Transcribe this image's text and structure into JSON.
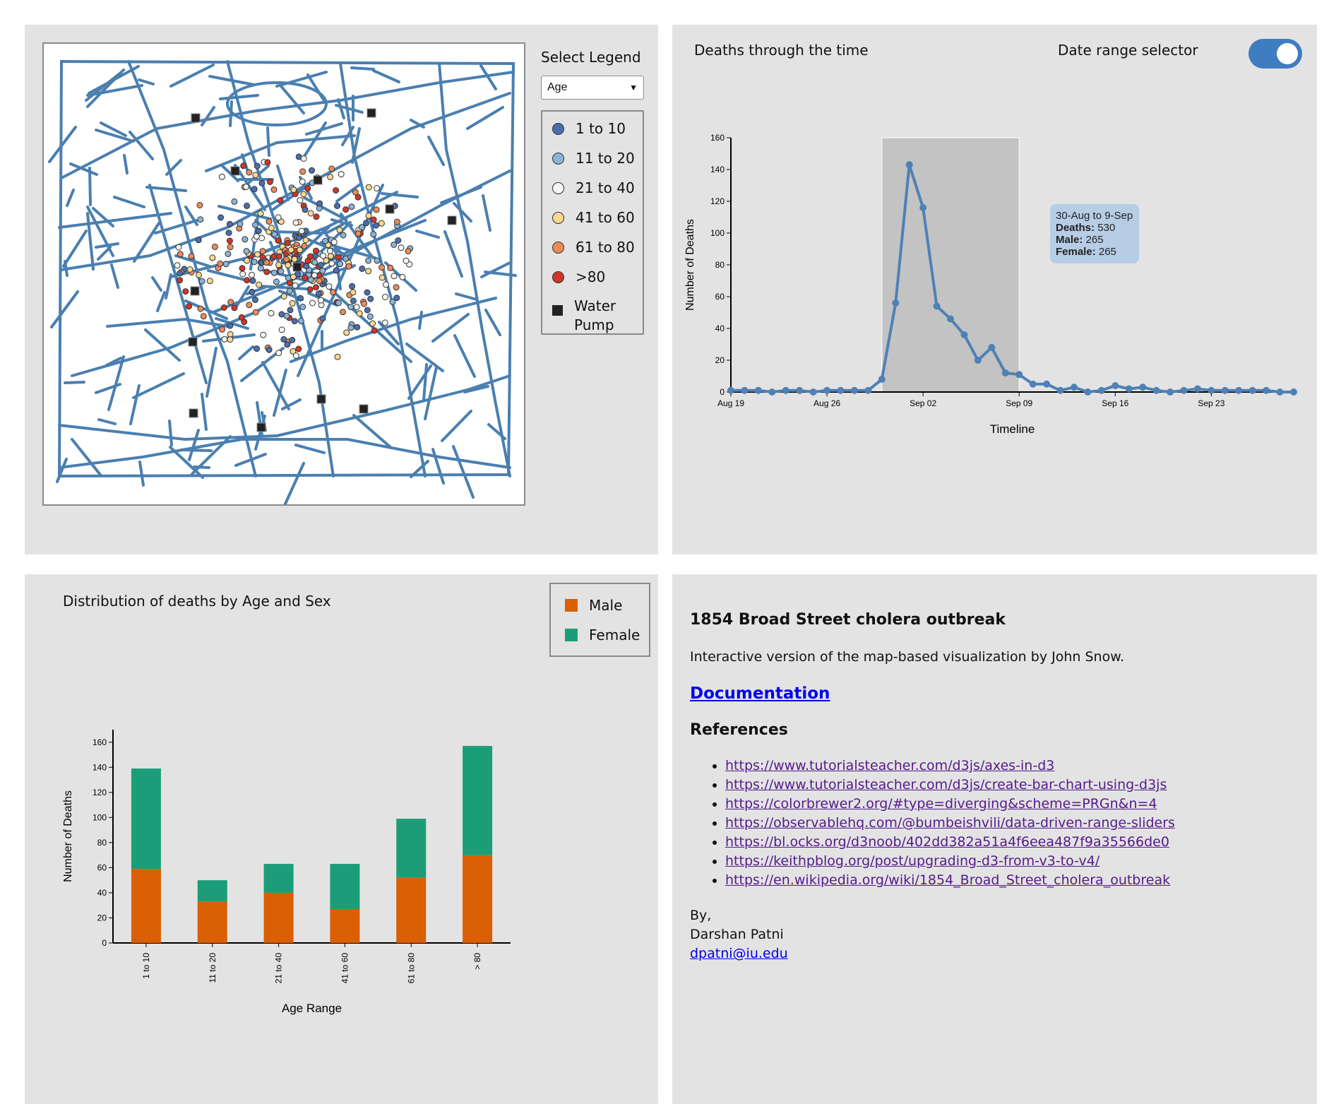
{
  "map_panel": {
    "legend_title": "Select Legend",
    "select_value": "Age",
    "legend_items": [
      {
        "label": "1 to 10",
        "color": "#4a6fae"
      },
      {
        "label": "11 to 20",
        "color": "#8ab3d8"
      },
      {
        "label": "21 to 40",
        "color": "#f3f6f2"
      },
      {
        "label": "41 to 60",
        "color": "#f7d98f"
      },
      {
        "label": "61 to 80",
        "color": "#ee8a5a"
      },
      {
        "label": ">80",
        "color": "#d0352b"
      }
    ],
    "pump_label_1": "Water",
    "pump_label_2": "Pump",
    "street_color": "#4a7fb0"
  },
  "line_panel": {
    "title": "Deaths through the time",
    "toggle_label": "Date range selector",
    "toggle_on": true,
    "tooltip": {
      "range": "30-Aug to 9-Sep",
      "deaths_label": "Deaths:",
      "deaths": "530",
      "male_label": "Male:",
      "male": "265",
      "female_label": "Female:",
      "female": "265"
    }
  },
  "bar_panel": {
    "title": "Distribution of deaths by Age and Sex",
    "legend": [
      {
        "label": "Male",
        "color": "#d95f02"
      },
      {
        "label": "Female",
        "color": "#1b9e77"
      }
    ]
  },
  "info_panel": {
    "heading": "1854 Broad Street cholera outbreak",
    "description": "Interactive version of the map-based visualization by John Snow.",
    "doc_link": "Documentation",
    "references_heading": "References",
    "references": [
      "https://www.tutorialsteacher.com/d3js/axes-in-d3",
      "https://www.tutorialsteacher.com/d3js/create-bar-chart-using-d3js",
      "https://colorbrewer2.org/#type=diverging&scheme=PRGn&n=4",
      "https://observablehq.com/@bumbeishvili/data-driven-range-sliders",
      "https://bl.ocks.org/d3noob/402dd382a51a4f6eea487f9a35566de0",
      "https://keithpblog.org/post/upgrading-d3-from-v3-to-v4/",
      "https://en.wikipedia.org/wiki/1854_Broad_Street_cholera_outbreak"
    ],
    "by": "By,",
    "author": "Darshan Patni",
    "email": "dpatni@iu.edu"
  },
  "chart_data": [
    {
      "type": "line",
      "title": "",
      "xlabel": "Timeline",
      "ylabel": "Number of Deaths",
      "ylim": [
        0,
        160
      ],
      "y_ticks": [
        0,
        20,
        40,
        60,
        80,
        100,
        120,
        140,
        160
      ],
      "x_tick_labels": [
        "Aug 19",
        "Aug 26",
        "Sep 02",
        "Sep 09",
        "Sep 16",
        "Sep 23"
      ],
      "x_tick_dates": [
        "1854-08-19",
        "1854-08-26",
        "1854-09-02",
        "1854-09-09",
        "1854-09-16",
        "1854-09-23"
      ],
      "x_range": [
        "1854-08-19",
        "1854-09-29"
      ],
      "selected_range": [
        "1854-08-30",
        "1854-09-09"
      ],
      "color": "#4e81b5",
      "series": [
        {
          "x": [
            "1854-08-19",
            "1854-08-20",
            "1854-08-21",
            "1854-08-22",
            "1854-08-23",
            "1854-08-24",
            "1854-08-25",
            "1854-08-26",
            "1854-08-27",
            "1854-08-28",
            "1854-08-29",
            "1854-08-30",
            "1854-08-31",
            "1854-09-01",
            "1854-09-02",
            "1854-09-03",
            "1854-09-04",
            "1854-09-05",
            "1854-09-06",
            "1854-09-07",
            "1854-09-08",
            "1854-09-09",
            "1854-09-10",
            "1854-09-11",
            "1854-09-12",
            "1854-09-13",
            "1854-09-14",
            "1854-09-15",
            "1854-09-16",
            "1854-09-17",
            "1854-09-18",
            "1854-09-19",
            "1854-09-20",
            "1854-09-21",
            "1854-09-22",
            "1854-09-23",
            "1854-09-24",
            "1854-09-25",
            "1854-09-26",
            "1854-09-27",
            "1854-09-28",
            "1854-09-29"
          ],
          "values": [
            1,
            1,
            1,
            0,
            1,
            1,
            0,
            1,
            1,
            1,
            1,
            8,
            56,
            143,
            116,
            54,
            46,
            36,
            20,
            28,
            12,
            11,
            5,
            5,
            1,
            3,
            0,
            1,
            4,
            2,
            3,
            1,
            0,
            1,
            2,
            1,
            1,
            1,
            1,
            1,
            0,
            0
          ]
        }
      ]
    },
    {
      "type": "bar",
      "title": "",
      "xlabel": "Age Range",
      "ylabel": "Number of Deaths",
      "ylim": [
        0,
        170
      ],
      "y_ticks": [
        0,
        20,
        40,
        60,
        80,
        100,
        120,
        140,
        160
      ],
      "categories": [
        "1 to 10",
        "11 to 20",
        "21 to 40",
        "41 to 60",
        "61 to 80",
        "> 80"
      ],
      "stacked": true,
      "series": [
        {
          "name": "Male",
          "color": "#d95f02",
          "values": [
            59,
            33,
            40,
            27,
            52,
            70
          ]
        },
        {
          "name": "Female",
          "color": "#1b9e77",
          "values": [
            80,
            17,
            23,
            36,
            47,
            87
          ]
        }
      ]
    }
  ]
}
